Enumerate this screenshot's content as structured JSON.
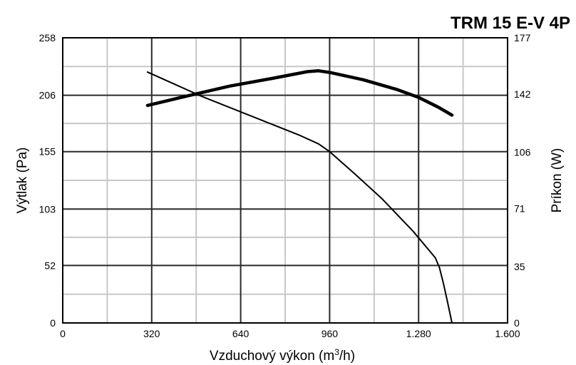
{
  "chart_data": {
    "type": "line",
    "title": "TRM 15 E-V 4P",
    "xlabel": "Vzduchový výkon (m",
    "xlabel_sup": "3",
    "xlabel_suffix": "/h)",
    "ylabel": "Výtlak (Pa)",
    "y2label": "Príkon (W)",
    "xlim": [
      0,
      1600
    ],
    "ylim": [
      0,
      258
    ],
    "y2lim": [
      0,
      177
    ],
    "x_ticks": [
      0,
      320,
      640,
      960,
      1280,
      1600
    ],
    "x_tick_labels": [
      "0",
      "320",
      "640",
      "960",
      "1.280",
      "1.600"
    ],
    "y_ticks": [
      0,
      52,
      103,
      155,
      206,
      258
    ],
    "y_tick_labels": [
      "0",
      "52",
      "103",
      "155",
      "206",
      "258"
    ],
    "y2_ticks": [
      0,
      35,
      71,
      106,
      142,
      177
    ],
    "y2_tick_labels": [
      "0",
      "35",
      "71",
      "106",
      "142",
      "177"
    ],
    "x_minor_ticks": [
      160,
      480,
      800,
      1120,
      1440
    ],
    "y_minor_ticks": [
      26,
      77.5,
      129,
      180.5,
      232
    ],
    "grid": true,
    "series": [
      {
        "axis": "left",
        "x": [
          305,
          500,
          700,
          850,
          920,
          960,
          1050,
          1150,
          1260,
          1340,
          1355,
          1370,
          1385,
          1400
        ],
        "values": [
          227,
          205,
          185,
          170,
          162,
          155,
          135,
          112,
          83,
          59,
          50,
          35,
          18,
          0
        ]
      },
      {
        "axis": "right",
        "x": [
          305,
          450,
          600,
          760,
          880,
          920,
          960,
          1080,
          1200,
          1280,
          1350,
          1400
        ],
        "values": [
          135,
          141,
          147,
          152,
          156,
          156.5,
          155.5,
          151,
          145,
          140,
          134,
          129
        ]
      }
    ],
    "series_colors": [
      "#000000",
      "#000000"
    ]
  }
}
